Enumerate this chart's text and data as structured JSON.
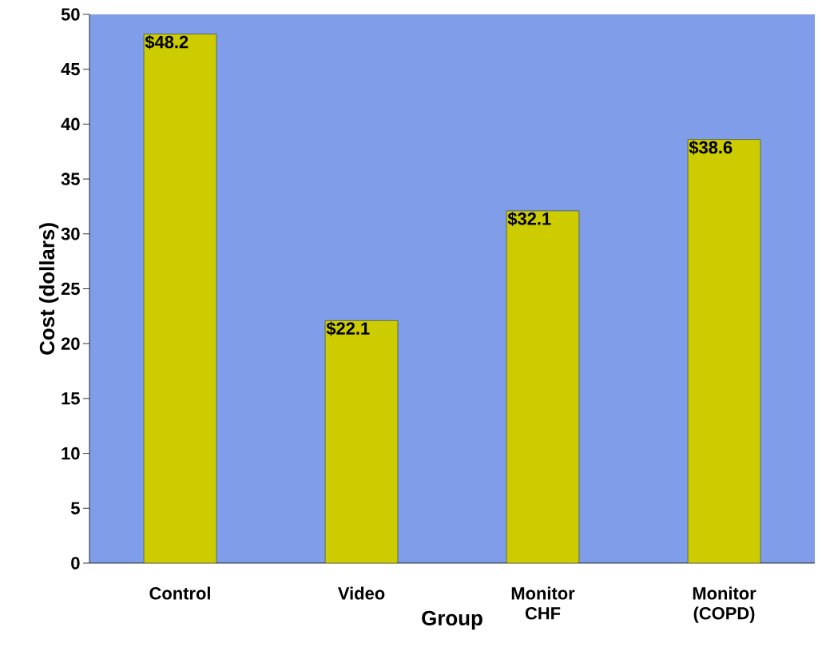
{
  "chart_data": {
    "type": "bar",
    "xlabel": "Group",
    "ylabel": "Cost (dollars)",
    "categories": [
      "Control",
      "Video",
      "Monitor CHF",
      "Monitor (COPD)"
    ],
    "values": [
      48.2,
      22.1,
      32.1,
      38.6
    ],
    "value_labels": [
      "$48.2",
      "$22.1",
      "$32.1",
      "$38.6"
    ],
    "color": "#cccc00",
    "ylim": [
      0,
      50
    ],
    "yticks": [
      0,
      5,
      10,
      15,
      20,
      25,
      30,
      35,
      40,
      45,
      50
    ],
    "grid": false
  }
}
